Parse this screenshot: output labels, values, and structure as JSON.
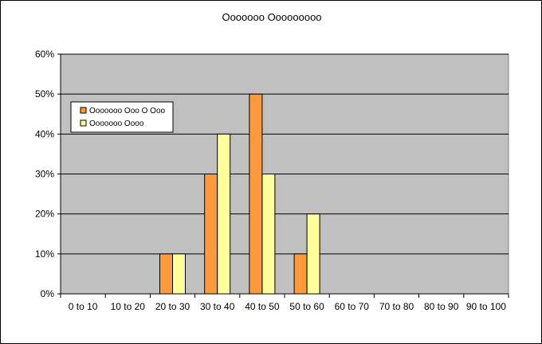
{
  "chart_data": {
    "type": "bar",
    "title": "Ooooooo Ooooooooo",
    "categories": [
      "0 to 10",
      "10 to 20",
      "20 to 30",
      "30 to 40",
      "40 to 50",
      "50 to 60",
      "60 to 70",
      "70 to 80",
      "80 to 90",
      "90 to 100"
    ],
    "series": [
      {
        "name": "Ooooooo Ooo O Ooo",
        "color": "#ff9a3c",
        "values": [
          0,
          0,
          10,
          30,
          50,
          10,
          0,
          0,
          0,
          0
        ]
      },
      {
        "name": "Ooooooo Oooo",
        "color": "#ffff99",
        "values": [
          0,
          0,
          10,
          40,
          30,
          20,
          0,
          0,
          0,
          0
        ]
      }
    ],
    "y_ticks": [
      "0%",
      "10%",
      "20%",
      "30%",
      "40%",
      "50%",
      "60%"
    ],
    "ylim": [
      0,
      60
    ],
    "y_unit": "%",
    "grid": true,
    "plot_background": "#c0c0c0",
    "legend_position": "top-left"
  }
}
